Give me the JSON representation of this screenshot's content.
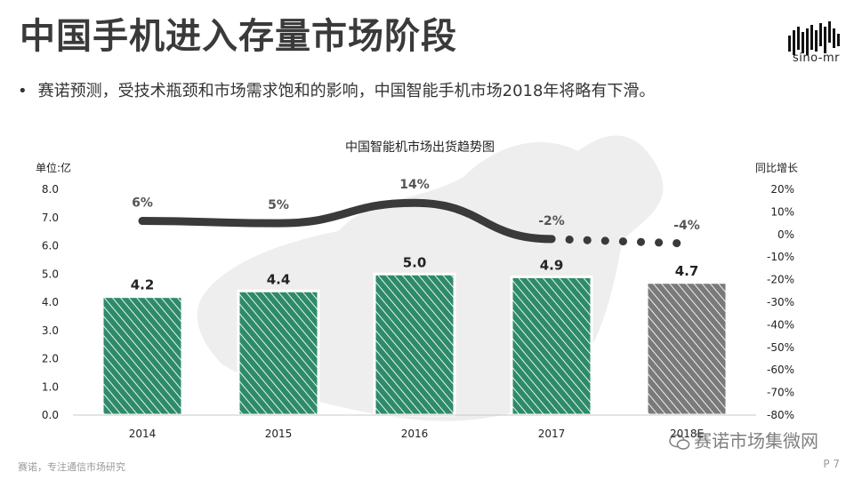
{
  "header": {
    "title": "中国手机进入存量市场阶段",
    "bullet": "赛诺预测，受技术瓶颈和市场需求饱和的影响，中国智能手机市场2018年将略有下滑。"
  },
  "logo": {
    "text": "sino-mr",
    "icon": "sino-mr-logo-icon"
  },
  "chart_data": {
    "type": "bar",
    "title": "中国智能机市场出货趋势图",
    "categories": [
      "2014",
      "2015",
      "2016",
      "2017",
      "2018E"
    ],
    "series": [
      {
        "values": [
          4.2,
          4.4,
          5.0,
          4.9,
          4.7
        ],
        "data_labels": [
          "4.2",
          "4.4",
          "5.0",
          "4.9",
          "4.7"
        ]
      },
      {
        "values": [
          6,
          5,
          14,
          -2,
          -4
        ],
        "data_labels": [
          "6%",
          "5%",
          "14%",
          "-2%",
          "-4%"
        ],
        "type": "line",
        "axis": "right"
      }
    ],
    "ylabel": "单位:亿",
    "ylim": [
      0,
      8
    ],
    "y_ticks": [
      "0.0",
      "1.0",
      "2.0",
      "3.0",
      "4.0",
      "5.0",
      "6.0",
      "7.0",
      "8.0"
    ],
    "y2label": "同比增长",
    "y2lim": [
      -80,
      20
    ],
    "y2_ticks": [
      "20%",
      "10%",
      "0%",
      "-10%",
      "-20%",
      "-30%",
      "-40%",
      "-50%",
      "-60%",
      "-70%",
      "-80%"
    ],
    "forecast_category": "2018E",
    "colors": {
      "actual": "#2e8b6a",
      "forecast": "#7a7a7a",
      "line": "#3a3a3a"
    }
  },
  "footer": {
    "left": "赛诺，专注通信市场研究",
    "right": "P 7"
  },
  "watermark": {
    "text": "赛诺市场集微网"
  }
}
